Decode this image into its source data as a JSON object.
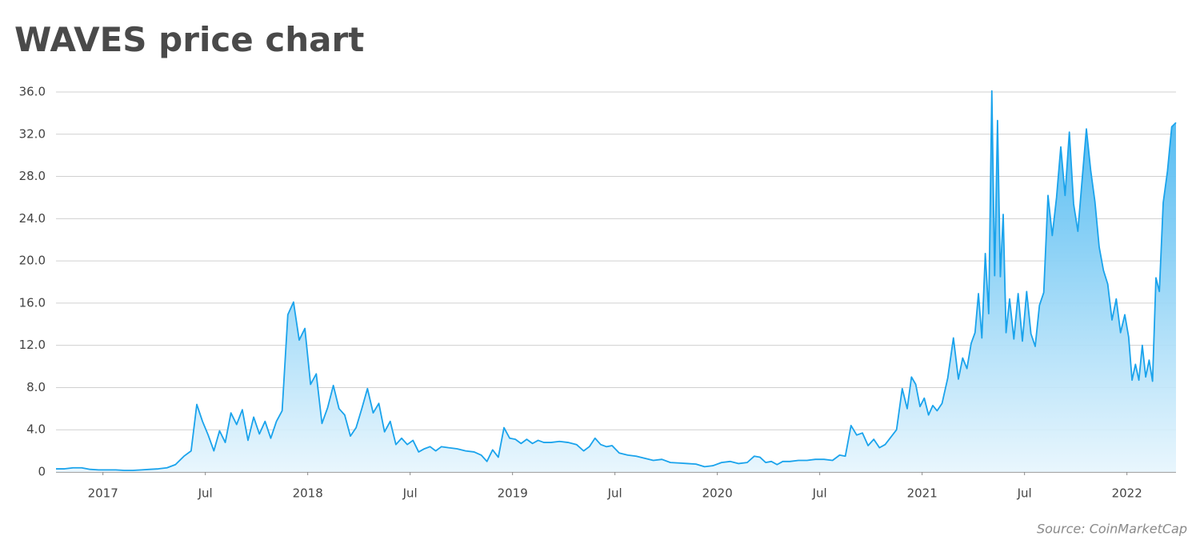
{
  "chart_data": {
    "type": "area",
    "title": "WAVES price chart",
    "source": "Source: CoinMarketCap",
    "x": [
      "2016-10",
      "2016-10",
      "2016-11",
      "2016-11",
      "2016-12",
      "2016-12",
      "2017-01",
      "2017-01",
      "2017-02",
      "2017-02",
      "2017-03",
      "2017-03",
      "2017-04",
      "2017-04",
      "2017-05",
      "2017-05",
      "2017-06",
      "2017-06",
      "2017-06",
      "2017-07",
      "2017-07",
      "2017-07",
      "2017-08",
      "2017-08",
      "2017-08",
      "2017-09",
      "2017-09",
      "2017-09",
      "2017-10",
      "2017-10",
      "2017-10",
      "2017-11",
      "2017-11",
      "2017-11",
      "2017-12",
      "2017-12",
      "2017-12",
      "2018-01",
      "2018-01",
      "2018-01",
      "2018-02",
      "2018-02",
      "2018-02",
      "2018-03",
      "2018-03",
      "2018-03",
      "2018-04",
      "2018-04",
      "2018-04",
      "2018-05",
      "2018-05",
      "2018-05",
      "2018-06",
      "2018-06",
      "2018-06",
      "2018-07",
      "2018-07",
      "2018-07",
      "2018-08",
      "2018-08",
      "2018-08",
      "2018-09",
      "2018-09",
      "2018-10",
      "2018-10",
      "2018-11",
      "2018-11",
      "2018-11",
      "2018-12",
      "2018-12",
      "2018-12",
      "2019-01",
      "2019-01",
      "2019-01",
      "2019-02",
      "2019-02",
      "2019-02",
      "2019-03",
      "2019-03",
      "2019-04",
      "2019-04",
      "2019-05",
      "2019-05",
      "2019-05",
      "2019-06",
      "2019-06",
      "2019-06",
      "2019-07",
      "2019-07",
      "2019-08",
      "2019-08",
      "2019-09",
      "2019-09",
      "2019-10",
      "2019-10",
      "2019-11",
      "2019-11",
      "2019-12",
      "2019-12",
      "2020-01",
      "2020-01",
      "2020-02",
      "2020-02",
      "2020-03",
      "2020-03",
      "2020-03",
      "2020-04",
      "2020-04",
      "2020-04",
      "2020-05",
      "2020-05",
      "2020-06",
      "2020-06",
      "2020-07",
      "2020-07",
      "2020-08",
      "2020-08",
      "2020-08",
      "2020-09",
      "2020-09",
      "2020-09",
      "2020-10",
      "2020-10",
      "2020-10",
      "2020-11",
      "2020-11",
      "2020-11",
      "2020-12",
      "2020-12",
      "2020-12",
      "2020-12",
      "2021-01",
      "2021-01",
      "2021-01",
      "2021-01",
      "2021-02",
      "2021-02",
      "2021-02",
      "2021-03",
      "2021-03",
      "2021-03",
      "2021-03",
      "2021-04",
      "2021-04",
      "2021-04",
      "2021-04",
      "2021-04",
      "2021-05",
      "2021-05",
      "2021-05",
      "2021-05",
      "2021-05",
      "2021-05",
      "2021-06",
      "2021-06",
      "2021-06",
      "2021-06",
      "2021-07",
      "2021-07",
      "2021-07",
      "2021-07",
      "2021-08",
      "2021-08",
      "2021-08",
      "2021-08",
      "2021-09",
      "2021-09",
      "2021-09",
      "2021-09",
      "2021-10",
      "2021-10",
      "2021-10",
      "2021-10",
      "2021-11",
      "2021-11",
      "2021-11",
      "2021-11",
      "2021-12",
      "2021-12",
      "2021-12",
      "2021-12",
      "2022-01",
      "2022-01",
      "2022-01",
      "2022-01",
      "2022-01",
      "2022-02",
      "2022-02",
      "2022-02",
      "2022-02",
      "2022-02",
      "2022-03",
      "2022-03",
      "2022-03",
      "2022-03"
    ],
    "series": [
      {
        "color": "#1aa3ec",
        "values": [
          0.3,
          0.3,
          0.4,
          0.4,
          0.25,
          0.2,
          0.2,
          0.2,
          0.15,
          0.15,
          0.2,
          0.25,
          0.3,
          0.4,
          0.7,
          1.5,
          2.0,
          6.4,
          4.8,
          3.5,
          2.0,
          3.9,
          2.8,
          5.6,
          4.5,
          5.9,
          3.0,
          5.2,
          3.6,
          4.8,
          3.2,
          4.8,
          5.8,
          14.9,
          16.1,
          12.5,
          13.6,
          8.3,
          9.3,
          4.6,
          6.1,
          8.2,
          6.0,
          5.4,
          3.4,
          4.2,
          6.0,
          7.9,
          5.6,
          6.5,
          3.8,
          4.8,
          2.6,
          3.2,
          2.6,
          3.0,
          1.9,
          2.2,
          2.4,
          2.0,
          2.4,
          2.3,
          2.2,
          2.0,
          1.9,
          1.6,
          1.0,
          2.1,
          1.4,
          4.2,
          3.2,
          3.1,
          2.7,
          3.1,
          2.7,
          3.0,
          2.8,
          2.8,
          2.9,
          2.8,
          2.6,
          2.0,
          2.4,
          3.2,
          2.6,
          2.4,
          2.5,
          1.8,
          1.6,
          1.5,
          1.3,
          1.1,
          1.2,
          0.9,
          0.85,
          0.8,
          0.75,
          0.5,
          0.6,
          0.9,
          1.0,
          0.8,
          0.9,
          1.5,
          1.4,
          0.9,
          1.0,
          0.7,
          1.0,
          1.0,
          1.1,
          1.1,
          1.2,
          1.2,
          1.1,
          1.6,
          1.5,
          4.4,
          3.5,
          3.7,
          2.5,
          3.1,
          2.3,
          2.6,
          3.3,
          4.0,
          7.9,
          6.0,
          9.0,
          8.3,
          6.2,
          7.0,
          5.4,
          6.3,
          5.8,
          6.5,
          8.9,
          12.7,
          8.8,
          10.8,
          9.8,
          12.2,
          13.2,
          16.9,
          12.7,
          20.7,
          15.0,
          36.1,
          18.6,
          33.3,
          18.5,
          24.4,
          13.2,
          16.4,
          12.6,
          16.9,
          12.4,
          17.1,
          13.1,
          11.9,
          15.8,
          17.0,
          26.2,
          22.4,
          26.0,
          30.8,
          26.2,
          32.2,
          25.4,
          22.8,
          27.7,
          32.5,
          28.6,
          25.6,
          21.3,
          19.1,
          17.8,
          14.4,
          16.4,
          13.2,
          14.9,
          12.8,
          8.7,
          10.2,
          8.7,
          12.0,
          9.0,
          10.6,
          8.6,
          18.4,
          17.1,
          25.5,
          28.5,
          32.7,
          33.1
        ]
      }
    ],
    "ylim": [
      0,
      36
    ],
    "yticks": [
      0,
      {
        "value": 4,
        "label": "4.0"
      },
      {
        "value": 8,
        "label": "8.0"
      },
      {
        "value": 12,
        "label": "12.0"
      },
      {
        "value": 16,
        "label": "16.0"
      },
      {
        "value": 20,
        "label": "20.0"
      },
      {
        "value": 24,
        "label": "24.0"
      },
      {
        "value": 28,
        "label": "28.0"
      },
      {
        "value": 32,
        "label": "32.0"
      },
      {
        "value": 36,
        "label": "36.0"
      }
    ],
    "xticks": [
      {
        "value": "2017-01",
        "label": "2017"
      },
      {
        "value": "2017-07",
        "label": "Jul"
      },
      {
        "value": "2018-01",
        "label": "2018"
      },
      {
        "value": "2018-07",
        "label": "Jul"
      },
      {
        "value": "2019-01",
        "label": "2019"
      },
      {
        "value": "2019-07",
        "label": "Jul"
      },
      {
        "value": "2020-01",
        "label": "2020"
      },
      {
        "value": "2020-07",
        "label": "Jul"
      },
      {
        "value": "2021-01",
        "label": "2021"
      },
      {
        "value": "2021-07",
        "label": "Jul"
      },
      {
        "value": "2022-01",
        "label": "2022"
      }
    ],
    "grid": true
  }
}
